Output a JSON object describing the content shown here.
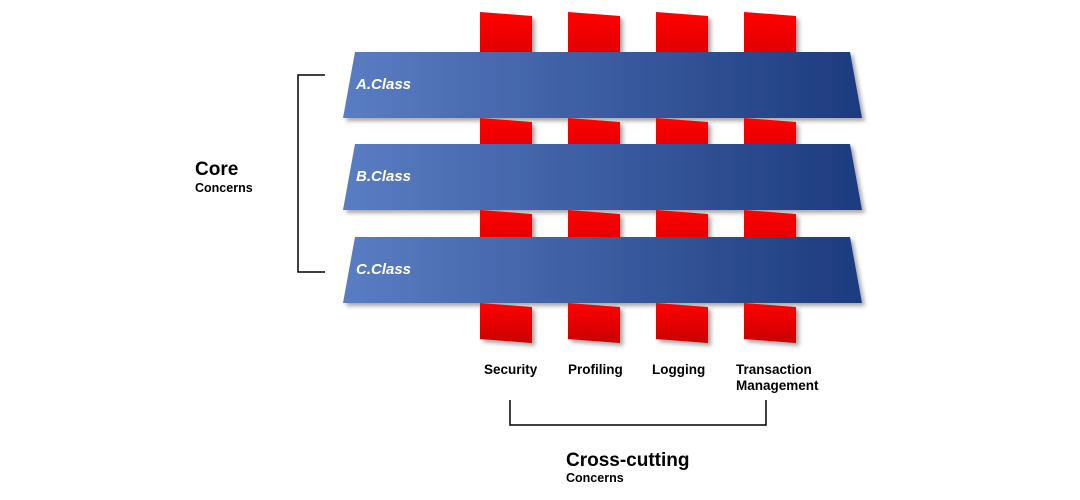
{
  "core_group": {
    "title": "Core",
    "subtitle": "Concerns"
  },
  "cross_group": {
    "title": "Cross-cutting",
    "subtitle": "Concerns"
  },
  "classes": [
    {
      "label": "A.Class"
    },
    {
      "label": "B.Class"
    },
    {
      "label": "C.Class"
    }
  ],
  "concerns": [
    {
      "lines": [
        "Security"
      ]
    },
    {
      "lines": [
        "Profiling"
      ]
    },
    {
      "lines": [
        "Logging"
      ]
    },
    {
      "lines": [
        "Transaction",
        "Management"
      ]
    }
  ],
  "colors": {
    "class_band_light": "#5a7dc3",
    "class_band_dark": "#1d3b7e",
    "concern_light": "#ff0000",
    "concern_dark": "#c80000",
    "bracket": "#000000"
  }
}
